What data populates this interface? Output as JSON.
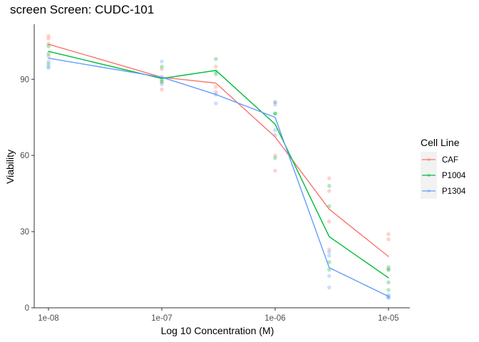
{
  "chart_data": {
    "type": "line",
    "title": "screen Screen: CUDC-101",
    "xlabel": "Log 10 Concentration (M)",
    "ylabel": "Viability",
    "x_scale": "log10",
    "x_ticks": [
      1e-08,
      1e-07,
      1e-06,
      1e-05
    ],
    "x_tick_labels": [
      "1e-08",
      "1e-07",
      "1e-06",
      "1e-05"
    ],
    "y_ticks": [
      0,
      30,
      60,
      90
    ],
    "y_tick_labels": [
      "0",
      "30",
      "60",
      "90"
    ],
    "xlim": [
      1e-08,
      1e-05
    ],
    "ylim": [
      0,
      110
    ],
    "grid": false,
    "legend": {
      "title": "Cell Line",
      "position": "right"
    },
    "x": [
      1e-08,
      1e-07,
      3e-07,
      1e-06,
      3e-06,
      1e-05
    ],
    "series": [
      {
        "name": "CAF",
        "color": "#F8766D",
        "values": [
          103.8,
          90.8,
          88.5,
          67.3,
          38.8,
          20.2
        ],
        "points": [
          [
            1e-08,
            107
          ],
          [
            1e-08,
            106
          ],
          [
            1e-08,
            104
          ],
          [
            1e-08,
            99
          ],
          [
            1e-07,
            94
          ],
          [
            1e-07,
            86
          ],
          [
            1e-07,
            89
          ],
          [
            3e-07,
            95
          ],
          [
            3e-07,
            87
          ],
          [
            3e-07,
            85
          ],
          [
            1e-06,
            81
          ],
          [
            1e-06,
            60
          ],
          [
            1e-06,
            54
          ],
          [
            3e-06,
            51
          ],
          [
            3e-06,
            46
          ],
          [
            3e-06,
            34
          ],
          [
            3e-06,
            23
          ],
          [
            1e-05,
            29
          ],
          [
            1e-05,
            27
          ],
          [
            1e-05,
            15
          ]
        ]
      },
      {
        "name": "P1004",
        "color": "#00BA38",
        "values": [
          101.0,
          90.3,
          93.5,
          72.3,
          28.0,
          11.8
        ],
        "points": [
          [
            1e-08,
            103
          ],
          [
            1e-08,
            100
          ],
          [
            1e-08,
            96
          ],
          [
            1e-07,
            95
          ],
          [
            1e-07,
            90
          ],
          [
            1e-07,
            89
          ],
          [
            3e-07,
            98
          ],
          [
            3e-07,
            93
          ],
          [
            3e-07,
            92
          ],
          [
            1e-06,
            76.5
          ],
          [
            1e-06,
            76.5
          ],
          [
            1e-06,
            59
          ],
          [
            3e-06,
            48
          ],
          [
            3e-06,
            40
          ],
          [
            3e-06,
            18
          ],
          [
            3e-06,
            15
          ],
          [
            1e-05,
            16
          ],
          [
            1e-05,
            15
          ],
          [
            1e-05,
            10
          ],
          [
            1e-05,
            7
          ]
        ]
      },
      {
        "name": "P1304",
        "color": "#619CFF",
        "values": [
          98.3,
          90.8,
          84.0,
          75.0,
          15.8,
          4.5
        ],
        "points": [
          [
            1e-08,
            97
          ],
          [
            1e-08,
            95
          ],
          [
            1e-08,
            94.5
          ],
          [
            1e-07,
            97
          ],
          [
            1e-07,
            91
          ],
          [
            1e-07,
            88
          ],
          [
            3e-07,
            84
          ],
          [
            3e-07,
            80.5
          ],
          [
            1e-06,
            81
          ],
          [
            1e-06,
            80
          ],
          [
            1e-06,
            70
          ],
          [
            1e-06,
            68
          ],
          [
            3e-06,
            22
          ],
          [
            3e-06,
            20.5
          ],
          [
            3e-06,
            12.5
          ],
          [
            3e-06,
            8
          ],
          [
            1e-05,
            5
          ],
          [
            1e-05,
            4.5
          ],
          [
            1e-05,
            4
          ],
          [
            1e-05,
            4
          ]
        ]
      }
    ]
  }
}
